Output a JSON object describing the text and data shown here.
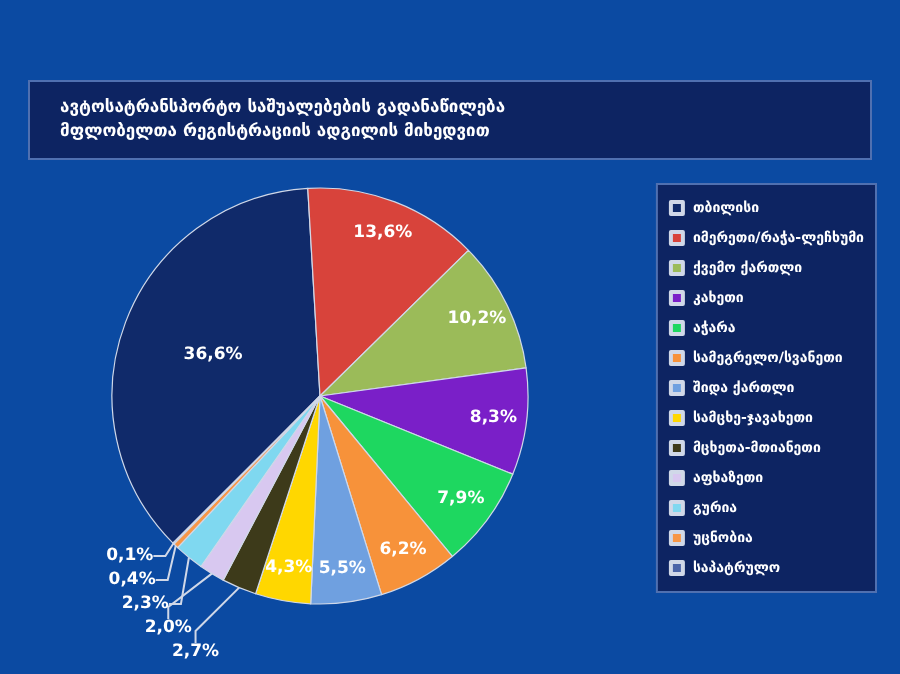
{
  "chart_data": {
    "type": "pie",
    "title": "ავტოსატრანსპორტო საშუალებების გადანაწილება მფლობელთა რეგისტრაციის ადგილის მიხედვით",
    "categories": [
      "თბილისი",
      "იმერეთი/რაჭა-ლეჩხუმი",
      "ქვემო ქართლი",
      "კახეთი",
      "აჭარა",
      "სამეგრელო/სვანეთი",
      "შიდა ქართლი",
      "სამცხე-ჯავახეთი",
      "მცხეთა-მთიანეთი",
      "აფხაზეთი",
      "გურია",
      "უცნობია",
      "საპატრულო"
    ],
    "values": [
      36.6,
      13.6,
      10.2,
      8.3,
      7.9,
      6.2,
      5.5,
      4.3,
      2.7,
      2.0,
      2.3,
      0.4,
      0.1
    ],
    "value_labels": [
      "36,6%",
      "13,6%",
      "10,2%",
      "8,3%",
      "7,9%",
      "6,2%",
      "5,5%",
      "4,3%",
      "2,7%",
      "2,0%",
      "2,3%",
      "0,4%",
      "0,1%"
    ],
    "colors": [
      "#102a6a",
      "#d8433b",
      "#9bbb59",
      "#7a1fc8",
      "#1ed760",
      "#f7923a",
      "#6fa0e0",
      "#ffd700",
      "#3d3a1a",
      "#d8c8f0",
      "#7fd8f0",
      "#f79646",
      "#4a64a8"
    ],
    "legend": "right"
  }
}
